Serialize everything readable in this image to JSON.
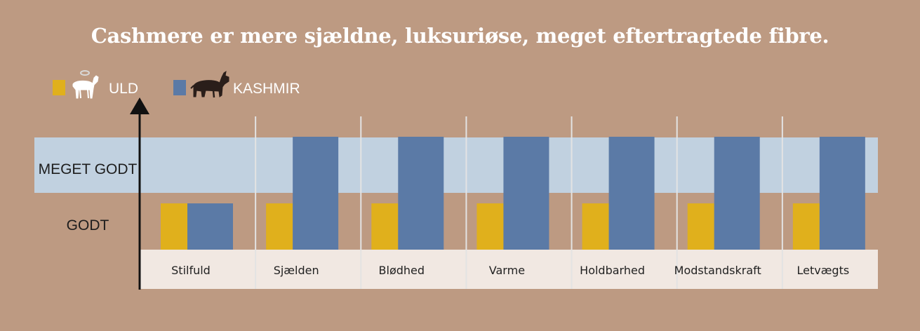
{
  "title": "Cashmere er mere sjældne, luksuriøse, meget eftertragtede fibre.",
  "legend": [
    {
      "label": "ULD",
      "color": "#e0b01c",
      "icon": "white-goat-icon"
    },
    {
      "label": "KASHMIR",
      "color": "#5b7aa6",
      "icon": "black-goat-icon"
    }
  ],
  "bands": [
    {
      "label": "MEGET GODT",
      "color": "#c1d1e0"
    },
    {
      "label": "GODT"
    }
  ],
  "colors": {
    "background": "#bd9a82",
    "uld": "#e0b01c",
    "kashmir": "#5b7aa6",
    "category_strip": "#f1e8e2"
  },
  "chart_data": {
    "type": "bar",
    "categories": [
      "Stilfuld",
      "Sjælden",
      "Blødhed",
      "Varme",
      "Holdbarhed",
      "Modstandskraft",
      "Letvægts"
    ],
    "y_levels": [
      "GODT",
      "MEGET GODT"
    ],
    "series": [
      {
        "name": "ULD",
        "values": [
          1,
          1,
          1,
          1,
          1,
          1,
          1
        ]
      },
      {
        "name": "KASHMIR",
        "values": [
          1,
          2,
          2,
          2,
          2,
          2,
          2
        ]
      }
    ],
    "ylim": [
      0,
      2
    ]
  }
}
